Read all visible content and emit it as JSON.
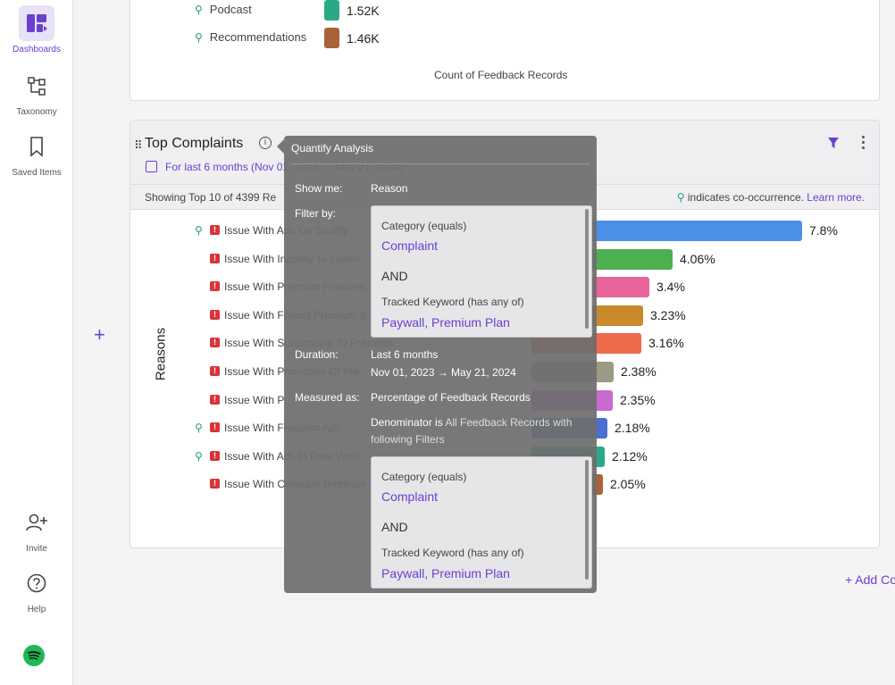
{
  "sidebar": {
    "items": [
      {
        "label": "Dashboards",
        "icon": "dashboard-icon",
        "active": true
      },
      {
        "label": "Taxonomy",
        "icon": "taxonomy-icon",
        "active": false
      },
      {
        "label": "Saved Items",
        "icon": "bookmark-icon",
        "active": false
      },
      {
        "label": "Invite",
        "icon": "add-user-icon",
        "active": false
      },
      {
        "label": "Help",
        "icon": "help-icon",
        "active": false
      }
    ],
    "logo": "spotify-logo"
  },
  "top_card": {
    "legend": [
      {
        "label": "Podcast",
        "value": "1.52K",
        "color": "#2aa987"
      },
      {
        "label": "Recommendations",
        "value": "1.46K",
        "color": "#a8633a"
      }
    ],
    "axis_title": "Count of Feedback Records"
  },
  "main_card": {
    "title": "Top Complaints",
    "date_range": "For last 6 months (Nov 01, 2023 → May 21, 2024)",
    "showing": "Showing Top 10 of 4399 Re",
    "cooc_note": "indicates co-occurrence.",
    "learn_more": "Learn more.",
    "axis_label": "Reasons",
    "add_plus": "+",
    "add_chart": "+ Add Co"
  },
  "chart_data": {
    "type": "bar",
    "orientation": "horizontal",
    "categories": [
      "Issue With Ads On Spotify",
      "Issue With Inability To Listen",
      "Issue With Premium Features",
      "Issue With Forced Premium S",
      "Issue With Subscribing To Premium",
      "Issue With Promotion Of Pre",
      "Issue With P",
      "Issue With Frequent Ads",
      "Issue With Ads In Free Versi",
      "Issue With Constant Reminde"
    ],
    "values": [
      7.8,
      4.06,
      3.4,
      3.23,
      3.16,
      2.38,
      2.35,
      2.18,
      2.12,
      2.05
    ],
    "value_labels": [
      "7.8%",
      "4.06%",
      "3.4%",
      "3.23%",
      "3.16%",
      "2.38%",
      "2.35%",
      "2.18%",
      "2.12%",
      "2.05%"
    ],
    "colors": [
      "#4a90e8",
      "#4caf50",
      "#e8649a",
      "#c98a2c",
      "#ee6a4b",
      "#9b9b85",
      "#c96ad0",
      "#4a6fd0",
      "#2aa987",
      "#a8633a"
    ],
    "cooccurrence": [
      true,
      false,
      false,
      false,
      false,
      false,
      false,
      true,
      true,
      false
    ],
    "xlim": [
      0,
      7.8
    ]
  },
  "tooltip": {
    "title": "Quantify Analysis",
    "show_me_key": "Show me:",
    "show_me_val": "Reason",
    "filter_by_key": "Filter by:",
    "filter_1": {
      "cat_line": "Category  (equals)",
      "cat_val": "Complaint",
      "and": "AND",
      "kw_line": "Tracked Keyword  (has any of)",
      "kw_val": "Paywall, Premium Plan"
    },
    "duration_key": "Duration:",
    "duration_val": "Last 6 months",
    "duration_range": "Nov 01, 2023 → May 21, 2024",
    "measured_key": "Measured as:",
    "measured_val": "Percentage of Feedback Records",
    "denominator_prefix": "Denominator is",
    "denominator_rest": "All Feedback Records with",
    "denominator_line2": "following Filters",
    "filter_2": {
      "cat_line": "Category  (equals)",
      "cat_val": "Complaint",
      "and": "AND",
      "kw_line": "Tracked Keyword  (has any of)",
      "kw_val": "Paywall, Premium Plan"
    }
  }
}
